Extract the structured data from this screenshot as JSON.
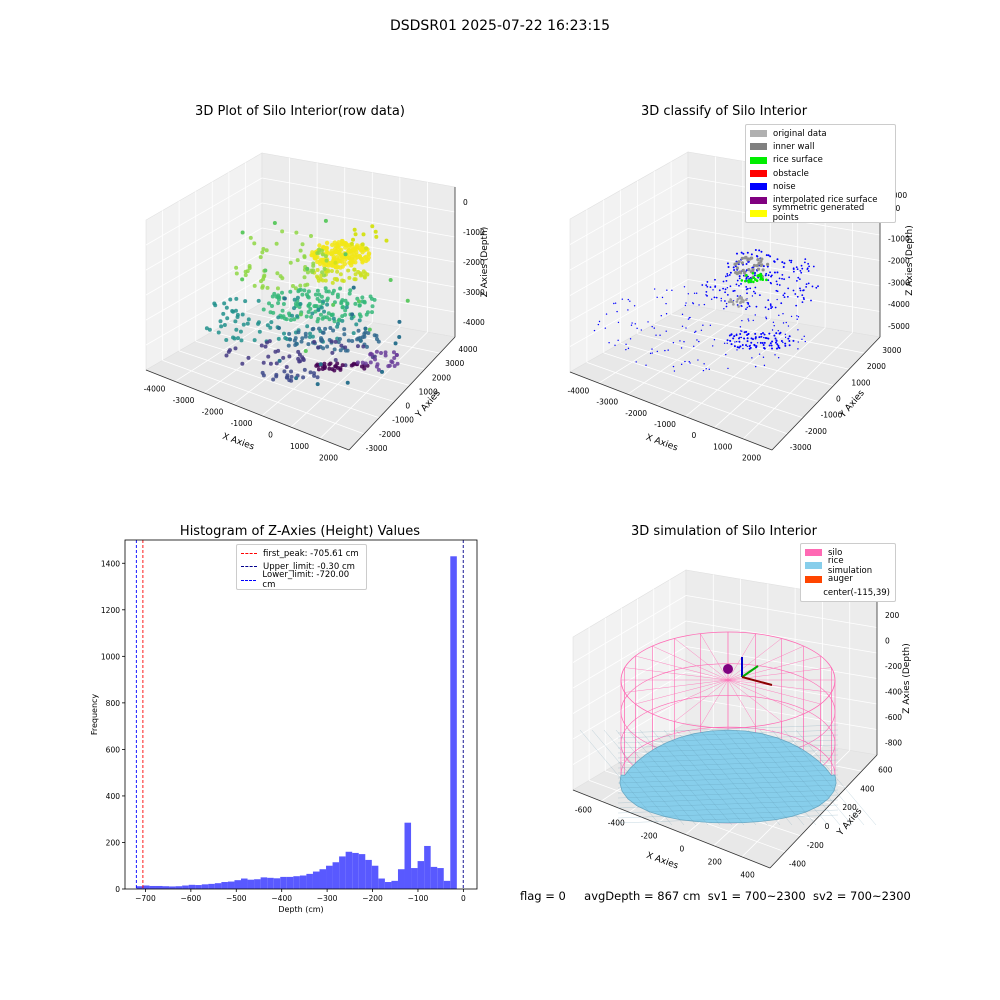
{
  "suptitle": "DSDSR01 2025-07-22 16:23:15",
  "status": {
    "flag": "flag = 0",
    "avg": "avgDepth = 867 cm",
    "sv1": "sv1 = 700~2300",
    "sv2": "sv2 = 700~2300"
  },
  "chart_data": [
    {
      "type": "scatter",
      "title": "3D Plot of Silo Interior(row data)",
      "xlabel": "X Axies",
      "ylabel": "Y Axies",
      "zlabel": "Z Axies (Depth)",
      "xticks": [
        "-4000",
        "-3000",
        "-2000",
        "-1000",
        "0",
        "1000",
        "2000"
      ],
      "yticks": [
        "-3000",
        "-2000",
        "-1000",
        "0",
        "1000",
        "2000",
        "3000",
        "4000"
      ],
      "zticks": [
        "-4000",
        "-3000",
        "-2000",
        "-1000",
        "0"
      ],
      "colormap": "viridis",
      "series": [
        {
          "points": [
            [
              -200,
              0,
              -3900
            ],
            [
              -1200,
              1600,
              -4200
            ],
            [
              0,
              2300,
              -4300
            ],
            [
              400,
              1400,
              -4200
            ],
            [
              600,
              700,
              -4000
            ],
            [
              -800,
              -1500,
              -4150
            ],
            [
              -1800,
              -2200,
              -4100
            ],
            [
              -2500,
              -700,
              -4050
            ],
            [
              -400,
              -2600,
              -4100
            ],
            [
              200,
              -1800,
              -4200
            ],
            [
              800,
              -700,
              -4150
            ],
            [
              -1000,
              -2800,
              -4050
            ],
            [
              -2900,
              600,
              -3900
            ],
            [
              -1600,
              2600,
              -4000
            ],
            [
              -500,
              1000,
              -4100
            ]
          ]
        },
        {
          "points": [
            [
              -300,
              100,
              -2800
            ],
            [
              -900,
              -400,
              -2900
            ],
            [
              -1500,
              1800,
              -2600
            ],
            [
              -2000,
              200,
              -2500
            ],
            [
              -2800,
              -1000,
              -2300
            ],
            [
              -3400,
              1000,
              -2000
            ],
            [
              -3800,
              -400,
              -1800
            ],
            [
              -1300,
              -1800,
              -2700
            ],
            [
              500,
              -900,
              -2900
            ],
            [
              900,
              900,
              -2700
            ],
            [
              -100,
              1900,
              -2900
            ],
            [
              -2400,
              2400,
              -2200
            ],
            [
              -3000,
              -2200,
              -2100
            ],
            [
              -600,
              -3000,
              -3000
            ]
          ]
        },
        {
          "points": [
            [
              -200,
              200,
              -800
            ],
            [
              100,
              400,
              -700
            ],
            [
              -400,
              -100,
              -900
            ],
            [
              0,
              -300,
              -800
            ],
            [
              300,
              0,
              -600
            ],
            [
              -100,
              600,
              -700
            ],
            [
              -500,
              300,
              -950
            ],
            [
              200,
              -500,
              -750
            ],
            [
              -300,
              -400,
              -850
            ],
            [
              -800,
              900,
              -1200
            ],
            [
              -600,
              -900,
              -1300
            ],
            [
              400,
              500,
              -900
            ]
          ]
        }
      ]
    },
    {
      "type": "scatter",
      "title": "3D classify of Silo Interior",
      "xlabel": "X Axies",
      "ylabel": "Y Axies",
      "zlabel": "Z Axies (Depth)",
      "xticks": [
        "-4000",
        "-3000",
        "-2000",
        "-1000",
        "0",
        "1000",
        "2000"
      ],
      "yticks": [
        "-3000",
        "-2000",
        "-1000",
        "0",
        "1000",
        "2000",
        "3000"
      ],
      "zticks": [
        "-5000",
        "-4000",
        "-3000",
        "-2000",
        "-1000",
        "0",
        "1000"
      ],
      "extra_ztick": "000",
      "legend": [
        {
          "label": "original data",
          "color": "#b0b0b0"
        },
        {
          "label": "inner wall",
          "color": "#808080"
        },
        {
          "label": "rice surface",
          "color": "#00ee00"
        },
        {
          "label": "obstacle",
          "color": "#ff0000"
        },
        {
          "label": "noise",
          "color": "#0000ff"
        },
        {
          "label": "interpolated rice surface",
          "color": "#800080"
        },
        {
          "label": "symmetric generated points",
          "color": "#ffff00"
        }
      ]
    },
    {
      "type": "bar",
      "title": "Histogram of Z-Axies (Height) Values",
      "xlabel": "Depth (cm)",
      "ylabel": "Frequency",
      "xlim": [
        -745,
        30
      ],
      "ylim": [
        0,
        1500
      ],
      "xticks": [
        -700,
        -600,
        -500,
        -400,
        -300,
        -200,
        -100,
        0
      ],
      "xtick_labels": [
        "−700",
        "−600",
        "−500",
        "−400",
        "−300",
        "−200",
        "−100",
        "0"
      ],
      "yticks": [
        0,
        200,
        400,
        600,
        800,
        1000,
        1200,
        1400
      ],
      "bin_width": 14.4,
      "bin_start": -720,
      "values": [
        12,
        15,
        13,
        13,
        12,
        11,
        12,
        15,
        18,
        17,
        20,
        22,
        25,
        30,
        32,
        38,
        45,
        40,
        42,
        50,
        48,
        46,
        52,
        52,
        55,
        58,
        65,
        75,
        85,
        100,
        115,
        140,
        160,
        155,
        150,
        125,
        100,
        45,
        30,
        35,
        85,
        285,
        90,
        120,
        185,
        95,
        90,
        35,
        1430
      ],
      "bar_color": "#5050ff",
      "lines": [
        {
          "label": "first_peak: -705.61 cm",
          "x": -705.61,
          "color": "#ff0000"
        },
        {
          "label": "Upper_limit: -0.30 cm",
          "x": -0.3,
          "color": "#00008b"
        },
        {
          "label": "Lower_limit: -720.00 cm",
          "x": -720.0,
          "color": "#0000ff"
        }
      ]
    },
    {
      "type": "area",
      "title": "3D simulation of Silo Interior",
      "xlabel": "X Axies",
      "ylabel": "Y Axies",
      "zlabel": "Z Axies (Depth)",
      "xticks": [
        "-600",
        "-400",
        "-200",
        "0",
        "200",
        "400"
      ],
      "yticks": [
        "-400",
        "-200",
        "0",
        "200",
        "400",
        "600"
      ],
      "zticks": [
        "-800",
        "-600",
        "-400",
        "-200",
        "0",
        "200"
      ],
      "legend": [
        {
          "label": "silo",
          "color": "#ff69b4"
        },
        {
          "label": "rice simulation",
          "color": "#87ceeb"
        },
        {
          "label": "auger",
          "color": "#ff4500"
        },
        {
          "label": "center(-115,39)",
          "color": ""
        }
      ]
    }
  ]
}
